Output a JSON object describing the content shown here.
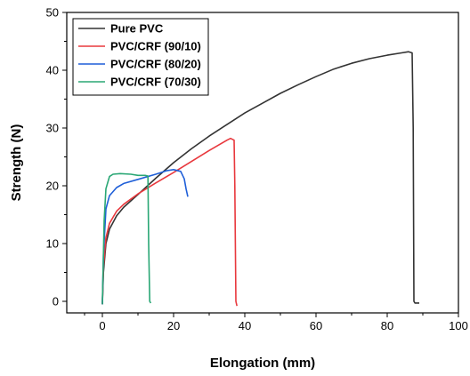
{
  "chart_data": {
    "type": "line",
    "title": "",
    "xlabel": "Elongation (mm)",
    "ylabel": "Strength (N)",
    "xlim": [
      -10,
      100
    ],
    "ylim": [
      -2,
      50
    ],
    "xticks": [
      0,
      20,
      40,
      60,
      80,
      100
    ],
    "yticks": [
      0,
      10,
      20,
      30,
      40,
      50
    ],
    "xtick_labels": [
      "0",
      "20",
      "40",
      "60",
      "80",
      "100"
    ],
    "ytick_labels": [
      "0",
      "10",
      "20",
      "30",
      "40",
      "50"
    ],
    "grid": false,
    "legend_position": "top-left",
    "series": [
      {
        "name": "Pure PVC",
        "color": "#333333",
        "x": [
          0,
          0.3,
          1,
          2,
          4,
          6,
          10,
          15,
          20,
          25,
          30,
          35,
          40,
          45,
          50,
          55,
          60,
          65,
          70,
          75,
          80,
          84,
          86,
          87,
          87.3,
          87.5,
          87.8,
          89
        ],
        "y": [
          -0.5,
          5,
          10,
          12.5,
          14.8,
          16.3,
          18.5,
          21.3,
          24,
          26.4,
          28.6,
          30.6,
          32.6,
          34.3,
          36,
          37.5,
          38.9,
          40.2,
          41.2,
          42,
          42.6,
          43,
          43.2,
          43,
          30,
          0,
          -0.3,
          -0.3
        ]
      },
      {
        "name": "PVC/CRF (90/10)",
        "color": "#e8383d",
        "x": [
          0,
          0.3,
          1,
          2,
          4,
          6,
          10,
          15,
          20,
          25,
          30,
          35,
          36,
          37,
          37.2,
          37.5,
          37.8
        ],
        "y": [
          -0.5,
          6,
          11,
          13.5,
          15.6,
          16.8,
          18.6,
          20.5,
          22.3,
          24.2,
          26.1,
          27.9,
          28.2,
          27.9,
          20,
          0,
          -0.8
        ]
      },
      {
        "name": "PVC/CRF (80/20)",
        "color": "#1f5fd8",
        "x": [
          0,
          0.3,
          1,
          2,
          4,
          6,
          10,
          15,
          18,
          20,
          22,
          23,
          23.5,
          24
        ],
        "y": [
          -0.5,
          8,
          16,
          18.3,
          19.7,
          20.4,
          21.1,
          22,
          22.6,
          22.8,
          22.5,
          21.2,
          19.5,
          18.1
        ]
      },
      {
        "name": "PVC/CRF (70/30)",
        "color": "#2aa775",
        "x": [
          0,
          0.5,
          1,
          2,
          3,
          5,
          8,
          10,
          12,
          12.8,
          13,
          13.3,
          13.6
        ],
        "y": [
          -0.5,
          14,
          19.5,
          21.6,
          22,
          22.1,
          22,
          21.8,
          21.8,
          21.7,
          10,
          0,
          -0.3
        ]
      }
    ]
  }
}
